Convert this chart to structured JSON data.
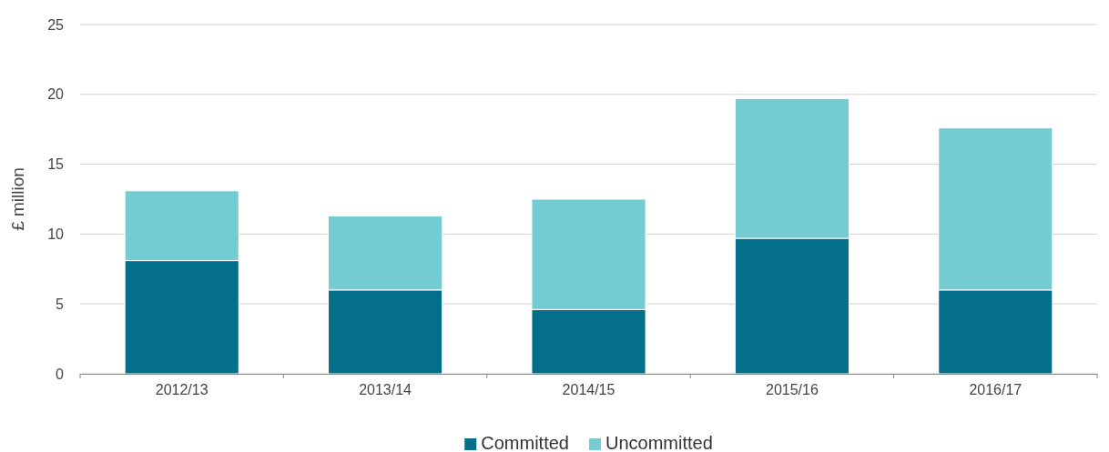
{
  "chart_data": {
    "type": "bar",
    "stacked": true,
    "ylabel": "£ million",
    "categories": [
      "2012/13",
      "2013/14",
      "2014/15",
      "2015/16",
      "2016/17"
    ],
    "series": [
      {
        "name": "Committed",
        "color": "#036f88",
        "values": [
          8.1,
          6.0,
          4.6,
          9.7,
          6.0
        ]
      },
      {
        "name": "Uncommitted",
        "color": "#75cbd2",
        "values": [
          5.0,
          5.3,
          7.9,
          10.0,
          11.6
        ]
      }
    ],
    "ylim": [
      0,
      25
    ],
    "yticks": [
      0,
      5,
      10,
      15,
      20,
      25
    ],
    "grid": "y",
    "legend": "bottom"
  }
}
